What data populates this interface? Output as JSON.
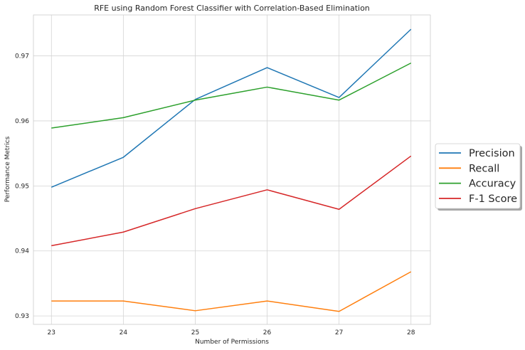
{
  "chart_data": {
    "type": "line",
    "title": "RFE using Random Forest Classifier with Correlation-Based Elimination",
    "xlabel": "Number of Permissions",
    "ylabel": "Performance Metrics",
    "x": [
      23,
      24,
      25,
      26,
      27,
      28
    ],
    "x_ticks": [
      "23",
      "24",
      "25",
      "26",
      "27",
      "28"
    ],
    "y_ticks": [
      "0.93",
      "0.94",
      "0.95",
      "0.96",
      "0.97"
    ],
    "y_tick_values": [
      0.93,
      0.94,
      0.95,
      0.96,
      0.97
    ],
    "xlim": [
      22.75,
      28.27
    ],
    "ylim": [
      0.9287,
      0.9763
    ],
    "grid": true,
    "legend_position": "center-right, outside plot",
    "series": [
      {
        "name": "Precision",
        "color": "#1f77b4",
        "values": [
          0.9498,
          0.9544,
          0.9633,
          0.9682,
          0.9636,
          0.9741
        ]
      },
      {
        "name": "Recall",
        "color": "#ff7f0e",
        "values": [
          0.9323,
          0.9323,
          0.9308,
          0.9323,
          0.9307,
          0.9368
        ]
      },
      {
        "name": "Accuracy",
        "color": "#2ca02c",
        "values": [
          0.9589,
          0.9605,
          0.9632,
          0.9652,
          0.9632,
          0.9689
        ]
      },
      {
        "name": "F-1 Score",
        "color": "#d62728",
        "values": [
          0.9408,
          0.9429,
          0.9465,
          0.9494,
          0.9464,
          0.9546
        ]
      }
    ]
  }
}
